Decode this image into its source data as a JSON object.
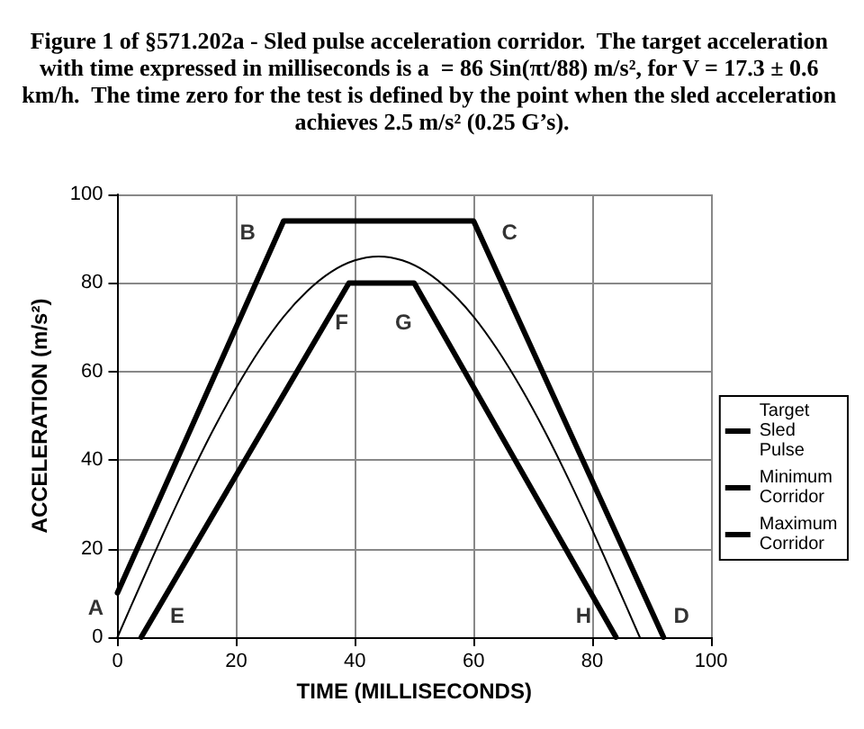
{
  "chart_data": {
    "type": "line",
    "title": "Figure 1 of §571.202a - Sled pulse acceleration corridor.  The target acceleration with time expressed in milliseconds is a  = 86 Sin(πt/88) m/s², for V = 17.3 ± 0.6 km/h.  The time zero for the test is defined by the point when the sled acceleration achieves 2.5 m/s² (0.25 G’s).",
    "xlabel": "TIME (MILLISECONDS)",
    "ylabel": "ACCELERATION (m/s²)",
    "series": [
      {
        "name": "Target Sled Pulse",
        "color": "#000000",
        "x": [
          0,
          4,
          8,
          12,
          16,
          20,
          24,
          28,
          32,
          36,
          40,
          44,
          48,
          52,
          56,
          60,
          64,
          68,
          72,
          76,
          80,
          84,
          88
        ],
        "values": [
          0,
          12.2,
          24.2,
          35.7,
          46.5,
          56.3,
          65.0,
          72.4,
          78.2,
          82.5,
          85.1,
          86,
          85.1,
          82.5,
          78.2,
          72.4,
          65.0,
          56.3,
          46.5,
          35.7,
          24.2,
          12.2,
          0
        ]
      },
      {
        "name": "Minimum Corridor",
        "color": "#000000",
        "x": [
          4,
          39,
          50,
          84
        ],
        "values": [
          0,
          80,
          80,
          0
        ]
      },
      {
        "name": "Maximum Corridor",
        "color": "#000000",
        "x": [
          0,
          28,
          60,
          92
        ],
        "values": [
          10,
          94,
          94,
          0
        ]
      }
    ],
    "annotations": [
      {
        "text": "A",
        "x": 0,
        "y": 10
      },
      {
        "text": "B",
        "x": 28,
        "y": 94
      },
      {
        "text": "C",
        "x": 60,
        "y": 94
      },
      {
        "text": "D",
        "x": 92,
        "y": 0
      },
      {
        "text": "E",
        "x": 4,
        "y": 0
      },
      {
        "text": "F",
        "x": 39,
        "y": 80
      },
      {
        "text": "G",
        "x": 50,
        "y": 80
      },
      {
        "text": "H",
        "x": 84,
        "y": 0
      }
    ],
    "xlim": [
      0,
      100
    ],
    "xticks": [
      0,
      20,
      40,
      60,
      80,
      100
    ],
    "ylim": [
      0,
      100
    ],
    "yticks": [
      0,
      20,
      40,
      60,
      80,
      100
    ],
    "grid": true,
    "legend": "right",
    "marker": "none",
    "line_style": "solid"
  }
}
